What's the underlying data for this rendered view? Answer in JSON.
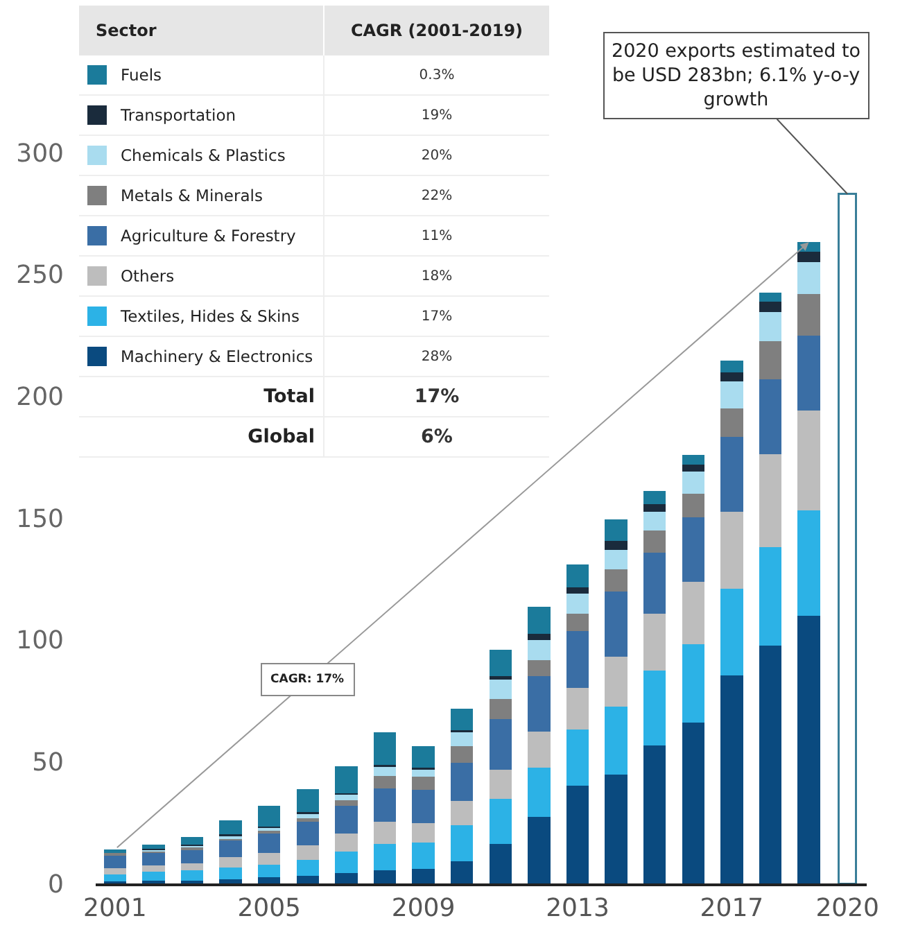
{
  "chart_data": {
    "type": "bar",
    "stacked": true,
    "legend": "top left",
    "legend_title": "Sector",
    "grid": false,
    "categories": [
      "2001",
      null,
      null,
      null,
      "2005",
      null,
      null,
      null,
      "2009",
      null,
      null,
      null,
      "2013",
      null,
      null,
      null,
      "2017",
      null,
      null,
      "2020"
    ],
    "ylim": [
      0,
      300
    ],
    "yticks": [
      0,
      50,
      100,
      150,
      200,
      250,
      300
    ],
    "series": [
      {
        "name": "Machinery & Electronics",
        "color": "#0a4a7f",
        "values": [
          0.8,
          1,
          1.1,
          1.7,
          2.5,
          3,
          4.3,
          5.5,
          5.9,
          9.1,
          16.3,
          27.3,
          40,
          44.8,
          56.7,
          66,
          85.5,
          97.7,
          110,
          null
        ]
      },
      {
        "name": "Textiles, Hides & Skins",
        "color": "#2cb2e6",
        "values": [
          3,
          3.8,
          4.2,
          4.8,
          5.3,
          6.7,
          8.7,
          10.8,
          11,
          14.8,
          18.4,
          20.3,
          23.2,
          27.9,
          30.8,
          32.3,
          35.5,
          40.4,
          43,
          null
        ]
      },
      {
        "name": "Others",
        "color": "#bdbdbd",
        "values": [
          2.5,
          2.5,
          3,
          4.2,
          4.7,
          6,
          7.6,
          9.1,
          8,
          10.1,
          12,
          14.6,
          17.1,
          20.5,
          23.1,
          25.6,
          31.5,
          38,
          41,
          null
        ]
      },
      {
        "name": "Agriculture & Forestry",
        "color": "#3a6ea5",
        "values": [
          5.5,
          5.5,
          5.6,
          7,
          8.1,
          9.7,
          11.4,
          13.7,
          13.6,
          15.5,
          20.9,
          23,
          23.3,
          26.5,
          25.2,
          26.5,
          30.8,
          30.9,
          31,
          null
        ]
      },
      {
        "name": "Metals & Minerals",
        "color": "#7f7f7f",
        "values": [
          0.8,
          0.7,
          0.9,
          0.9,
          1.4,
          1.3,
          2.2,
          5.1,
          5.3,
          7,
          8.1,
          6.4,
          7,
          9.1,
          9.2,
          9.7,
          11.7,
          15.5,
          17,
          null
        ]
      },
      {
        "name": "Chemicals & Plastics",
        "color": "#a9dcef",
        "values": [
          null,
          0.4,
          0.6,
          1,
          0.9,
          1.9,
          2.5,
          3.8,
          2.9,
          5.7,
          8,
          8.2,
          8.5,
          8,
          7.5,
          8.9,
          11,
          12,
          13,
          null
        ]
      },
      {
        "name": "Transportation",
        "color": "#1a2b3c",
        "values": [
          0.4,
          0.4,
          0.4,
          0.5,
          0.4,
          0.6,
          0.4,
          0.6,
          0.9,
          0.6,
          1.4,
          2.8,
          2.5,
          3.8,
          3.3,
          2.9,
          3.8,
          4.4,
          4.4,
          null
        ]
      },
      {
        "name": "Fuels",
        "color": "#1b7b9b",
        "values": [
          1,
          1.6,
          3.4,
          5.7,
          8.6,
          9.5,
          10.9,
          13.4,
          8.7,
          8.9,
          10.9,
          11,
          9.4,
          8.9,
          5.2,
          4.1,
          4.8,
          3.7,
          3.8,
          null
        ]
      },
      {
        "color": "#ffffff",
        "values": [
          null,
          null,
          null,
          null,
          null,
          null,
          null,
          null,
          null,
          null,
          null,
          null,
          null,
          null,
          null,
          null,
          null,
          null,
          null,
          283
        ]
      }
    ],
    "annotations": [
      {
        "text": "2020 exports estimated to be USD 283bn; 6.1% y-o-y growth",
        "x": "2020",
        "y": 283
      },
      "CAGR: 17%",
      "CAGR (2001-2019)",
      "0.3%",
      "19%",
      "20%",
      "22%",
      "11%",
      "18%",
      "17%",
      "28%",
      "Total",
      "17%",
      "Global",
      "6%"
    ]
  }
}
